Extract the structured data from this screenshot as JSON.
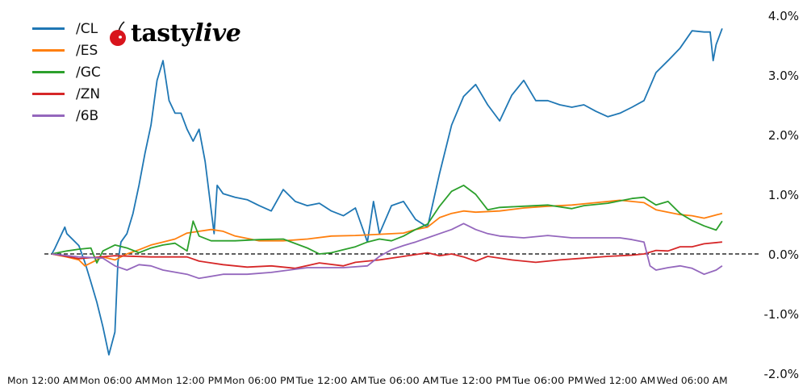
{
  "logo": {
    "text": "tastylive",
    "part1": "tasty",
    "part2": "live"
  },
  "chart_data": {
    "type": "line",
    "title": "",
    "xlabel": "",
    "ylabel": "",
    "ylim": [
      -2.0,
      4.0
    ],
    "y_ticks": [
      "4.0%",
      "3.0%",
      "2.0%",
      "1.0%",
      "0.0%",
      "-1.0%",
      "-2.0%"
    ],
    "y_tick_values": [
      4,
      3,
      2,
      1,
      0,
      -1,
      -2
    ],
    "y_axis_side": "right",
    "x_ticks": [
      "Mon 12:00 AM",
      "Mon 06:00 AM",
      "Mon 12:00 PM",
      "Mon 06:00 PM",
      "Tue 12:00 AM",
      "Tue 06:00 AM",
      "Tue 12:00 PM",
      "Tue 06:00 PM",
      "Wed 12:00 AM",
      "Wed 06:00 AM"
    ],
    "x_tick_values": [
      "Mon 00:00",
      "Mon 06:00",
      "Mon 12:00",
      "Mon 18:00",
      "Tue 00:00",
      "Tue 06:00",
      "Tue 12:00",
      "Tue 18:00",
      "Wed 00:00",
      "Wed 06:00"
    ],
    "grid": false,
    "zero_line": "dashed",
    "legend_placement": "top-left",
    "series": [
      {
        "name": "/CL",
        "color": "#1f77b4",
        "points": [
          [
            "Mon 00:45",
            0.0
          ],
          [
            "Mon 01:00",
            0.09
          ],
          [
            "Mon 01:50",
            0.45
          ],
          [
            "Mon 02:00",
            0.34
          ],
          [
            "Mon 03:00",
            0.14
          ],
          [
            "Mon 03:30",
            -0.14
          ],
          [
            "Mon 04:00",
            -0.47
          ],
          [
            "Mon 04:30",
            -0.81
          ],
          [
            "Mon 05:00",
            -1.22
          ],
          [
            "Mon 05:30",
            -1.69
          ],
          [
            "Mon 06:00",
            -1.31
          ],
          [
            "Mon 06:15",
            -0.14
          ],
          [
            "Mon 06:30",
            0.2
          ],
          [
            "Mon 07:00",
            0.34
          ],
          [
            "Mon 07:30",
            0.68
          ],
          [
            "Mon 08:00",
            1.15
          ],
          [
            "Mon 08:30",
            1.69
          ],
          [
            "Mon 09:00",
            2.16
          ],
          [
            "Mon 09:30",
            2.91
          ],
          [
            "Mon 10:00",
            3.24
          ],
          [
            "Mon 10:30",
            2.57
          ],
          [
            "Mon 11:00",
            2.36
          ],
          [
            "Mon 11:30",
            2.36
          ],
          [
            "Mon 12:00",
            2.09
          ],
          [
            "Mon 12:30",
            1.89
          ],
          [
            "Mon 13:00",
            2.09
          ],
          [
            "Mon 13:30",
            1.55
          ],
          [
            "Mon 14:15",
            0.34
          ],
          [
            "Mon 14:30",
            1.15
          ],
          [
            "Mon 15:00",
            1.01
          ],
          [
            "Mon 16:00",
            0.95
          ],
          [
            "Mon 17:00",
            0.91
          ],
          [
            "Mon 18:00",
            0.81
          ],
          [
            "Mon 19:00",
            0.72
          ],
          [
            "Mon 20:00",
            1.08
          ],
          [
            "Mon 21:00",
            0.88
          ],
          [
            "Mon 22:00",
            0.81
          ],
          [
            "Mon 23:00",
            0.85
          ],
          [
            "Tue 00:00",
            0.72
          ],
          [
            "Tue 01:00",
            0.64
          ],
          [
            "Tue 02:00",
            0.77
          ],
          [
            "Tue 03:00",
            0.2
          ],
          [
            "Tue 03:30",
            0.88
          ],
          [
            "Tue 04:00",
            0.34
          ],
          [
            "Tue 05:00",
            0.81
          ],
          [
            "Tue 06:00",
            0.88
          ],
          [
            "Tue 07:00",
            0.58
          ],
          [
            "Tue 08:00",
            0.45
          ],
          [
            "Tue 09:00",
            1.35
          ],
          [
            "Tue 10:00",
            2.16
          ],
          [
            "Tue 11:00",
            2.64
          ],
          [
            "Tue 12:00",
            2.84
          ],
          [
            "Tue 13:00",
            2.5
          ],
          [
            "Tue 14:00",
            2.23
          ],
          [
            "Tue 15:00",
            2.66
          ],
          [
            "Tue 16:00",
            2.91
          ],
          [
            "Tue 17:00",
            2.57
          ],
          [
            "Tue 18:00",
            2.57
          ],
          [
            "Tue 19:00",
            2.5
          ],
          [
            "Tue 20:00",
            2.46
          ],
          [
            "Tue 21:00",
            2.5
          ],
          [
            "Tue 22:00",
            2.39
          ],
          [
            "Tue 23:00",
            2.3
          ],
          [
            "Wed 00:00",
            2.36
          ],
          [
            "Wed 01:00",
            2.46
          ],
          [
            "Wed 02:00",
            2.57
          ],
          [
            "Wed 03:00",
            3.04
          ],
          [
            "Wed 04:00",
            3.24
          ],
          [
            "Wed 05:00",
            3.45
          ],
          [
            "Wed 06:00",
            3.74
          ],
          [
            "Wed 07:00",
            3.72
          ],
          [
            "Wed 07:30",
            3.72
          ],
          [
            "Wed 07:45",
            3.24
          ],
          [
            "Wed 08:00",
            3.51
          ],
          [
            "Wed 08:30",
            3.78
          ]
        ]
      },
      {
        "name": "/ES",
        "color": "#ff7f0e",
        "points": [
          [
            "Mon 00:45",
            0.0
          ],
          [
            "Mon 02:00",
            -0.05
          ],
          [
            "Mon 03:00",
            -0.1
          ],
          [
            "Mon 03:30",
            -0.2
          ],
          [
            "Mon 05:00",
            -0.05
          ],
          [
            "Mon 06:00",
            -0.1
          ],
          [
            "Mon 07:00",
            0.0
          ],
          [
            "Mon 08:00",
            0.07
          ],
          [
            "Mon 09:00",
            0.15
          ],
          [
            "Mon 10:00",
            0.2
          ],
          [
            "Mon 11:00",
            0.25
          ],
          [
            "Mon 12:00",
            0.35
          ],
          [
            "Mon 13:00",
            0.38
          ],
          [
            "Mon 14:00",
            0.41
          ],
          [
            "Mon 15:00",
            0.38
          ],
          [
            "Mon 16:00",
            0.3
          ],
          [
            "Mon 18:00",
            0.22
          ],
          [
            "Mon 20:00",
            0.22
          ],
          [
            "Mon 22:00",
            0.25
          ],
          [
            "Tue 00:00",
            0.3
          ],
          [
            "Tue 02:00",
            0.31
          ],
          [
            "Tue 04:00",
            0.33
          ],
          [
            "Tue 06:00",
            0.35
          ],
          [
            "Tue 07:00",
            0.41
          ],
          [
            "Tue 08:00",
            0.45
          ],
          [
            "Tue 09:00",
            0.61
          ],
          [
            "Tue 10:00",
            0.68
          ],
          [
            "Tue 11:00",
            0.72
          ],
          [
            "Tue 12:00",
            0.7
          ],
          [
            "Tue 14:00",
            0.72
          ],
          [
            "Tue 16:00",
            0.77
          ],
          [
            "Tue 18:00",
            0.8
          ],
          [
            "Tue 20:00",
            0.82
          ],
          [
            "Tue 22:00",
            0.86
          ],
          [
            "Wed 00:00",
            0.9
          ],
          [
            "Wed 01:00",
            0.88
          ],
          [
            "Wed 02:00",
            0.86
          ],
          [
            "Wed 03:00",
            0.74
          ],
          [
            "Wed 04:00",
            0.7
          ],
          [
            "Wed 05:00",
            0.66
          ],
          [
            "Wed 06:00",
            0.64
          ],
          [
            "Wed 07:00",
            0.6
          ],
          [
            "Wed 08:30",
            0.68
          ]
        ]
      },
      {
        "name": "/GC",
        "color": "#2ca02c",
        "points": [
          [
            "Mon 00:45",
            0.0
          ],
          [
            "Mon 02:00",
            0.05
          ],
          [
            "Mon 03:00",
            0.08
          ],
          [
            "Mon 04:00",
            0.1
          ],
          [
            "Mon 04:30",
            -0.15
          ],
          [
            "Mon 05:00",
            0.05
          ],
          [
            "Mon 06:00",
            0.15
          ],
          [
            "Mon 07:00",
            0.1
          ],
          [
            "Mon 08:00",
            0.02
          ],
          [
            "Mon 09:00",
            0.1
          ],
          [
            "Mon 10:00",
            0.15
          ],
          [
            "Mon 11:00",
            0.18
          ],
          [
            "Mon 12:00",
            0.05
          ],
          [
            "Mon 12:30",
            0.55
          ],
          [
            "Mon 13:00",
            0.3
          ],
          [
            "Mon 14:00",
            0.22
          ],
          [
            "Mon 16:00",
            0.22
          ],
          [
            "Mon 18:00",
            0.24
          ],
          [
            "Mon 20:00",
            0.25
          ],
          [
            "Mon 22:00",
            0.1
          ],
          [
            "Mon 23:00",
            0.0
          ],
          [
            "Tue 00:00",
            0.02
          ],
          [
            "Tue 01:00",
            0.07
          ],
          [
            "Tue 02:00",
            0.12
          ],
          [
            "Tue 03:00",
            0.2
          ],
          [
            "Tue 04:00",
            0.25
          ],
          [
            "Tue 05:00",
            0.22
          ],
          [
            "Tue 06:00",
            0.3
          ],
          [
            "Tue 07:00",
            0.41
          ],
          [
            "Tue 08:00",
            0.5
          ],
          [
            "Tue 09:00",
            0.8
          ],
          [
            "Tue 10:00",
            1.05
          ],
          [
            "Tue 11:00",
            1.15
          ],
          [
            "Tue 12:00",
            1.0
          ],
          [
            "Tue 13:00",
            0.74
          ],
          [
            "Tue 14:00",
            0.78
          ],
          [
            "Tue 16:00",
            0.8
          ],
          [
            "Tue 18:00",
            0.82
          ],
          [
            "Tue 20:00",
            0.76
          ],
          [
            "Tue 21:00",
            0.81
          ],
          [
            "Tue 23:00",
            0.85
          ],
          [
            "Wed 01:00",
            0.93
          ],
          [
            "Wed 02:00",
            0.95
          ],
          [
            "Wed 03:00",
            0.82
          ],
          [
            "Wed 04:00",
            0.88
          ],
          [
            "Wed 05:00",
            0.68
          ],
          [
            "Wed 06:00",
            0.56
          ],
          [
            "Wed 07:00",
            0.47
          ],
          [
            "Wed 08:00",
            0.4
          ],
          [
            "Wed 08:30",
            0.55
          ]
        ]
      },
      {
        "name": "/ZN",
        "color": "#d62728",
        "points": [
          [
            "Mon 00:45",
            0.0
          ],
          [
            "Mon 03:00",
            -0.08
          ],
          [
            "Mon 06:00",
            -0.03
          ],
          [
            "Mon 09:00",
            -0.05
          ],
          [
            "Mon 12:00",
            -0.05
          ],
          [
            "Mon 13:00",
            -0.12
          ],
          [
            "Mon 15:00",
            -0.18
          ],
          [
            "Mon 17:00",
            -0.22
          ],
          [
            "Mon 19:00",
            -0.2
          ],
          [
            "Mon 21:00",
            -0.24
          ],
          [
            "Mon 23:00",
            -0.15
          ],
          [
            "Tue 01:00",
            -0.2
          ],
          [
            "Tue 02:00",
            -0.14
          ],
          [
            "Tue 04:00",
            -0.1
          ],
          [
            "Tue 06:00",
            -0.04
          ],
          [
            "Tue 08:00",
            0.02
          ],
          [
            "Tue 09:00",
            -0.03
          ],
          [
            "Tue 10:00",
            0.0
          ],
          [
            "Tue 11:00",
            -0.05
          ],
          [
            "Tue 12:00",
            -0.12
          ],
          [
            "Tue 13:00",
            -0.04
          ],
          [
            "Tue 15:00",
            -0.1
          ],
          [
            "Tue 17:00",
            -0.14
          ],
          [
            "Tue 19:00",
            -0.1
          ],
          [
            "Tue 21:00",
            -0.07
          ],
          [
            "Tue 23:00",
            -0.04
          ],
          [
            "Wed 01:00",
            -0.02
          ],
          [
            "Wed 02:00",
            0.0
          ],
          [
            "Wed 03:00",
            0.06
          ],
          [
            "Wed 04:00",
            0.05
          ],
          [
            "Wed 05:00",
            0.12
          ],
          [
            "Wed 06:00",
            0.12
          ],
          [
            "Wed 07:00",
            0.17
          ],
          [
            "Wed 08:30",
            0.2
          ]
        ]
      },
      {
        "name": "/6B",
        "color": "#9467bd",
        "points": [
          [
            "Mon 00:45",
            0.0
          ],
          [
            "Mon 03:00",
            -0.05
          ],
          [
            "Mon 05:00",
            -0.07
          ],
          [
            "Mon 06:00",
            -0.2
          ],
          [
            "Mon 07:00",
            -0.27
          ],
          [
            "Mon 08:00",
            -0.18
          ],
          [
            "Mon 09:00",
            -0.2
          ],
          [
            "Mon 10:00",
            -0.27
          ],
          [
            "Mon 12:00",
            -0.34
          ],
          [
            "Mon 13:00",
            -0.41
          ],
          [
            "Mon 15:00",
            -0.34
          ],
          [
            "Mon 17:00",
            -0.34
          ],
          [
            "Mon 19:00",
            -0.31
          ],
          [
            "Mon 22:00",
            -0.23
          ],
          [
            "Tue 01:00",
            -0.23
          ],
          [
            "Tue 03:00",
            -0.2
          ],
          [
            "Tue 04:00",
            -0.04
          ],
          [
            "Tue 05:00",
            0.07
          ],
          [
            "Tue 06:00",
            0.14
          ],
          [
            "Tue 07:00",
            0.2
          ],
          [
            "Tue 08:00",
            0.27
          ],
          [
            "Tue 09:00",
            0.34
          ],
          [
            "Tue 10:00",
            0.41
          ],
          [
            "Tue 11:00",
            0.51
          ],
          [
            "Tue 12:00",
            0.41
          ],
          [
            "Tue 13:00",
            0.34
          ],
          [
            "Tue 14:00",
            0.3
          ],
          [
            "Tue 16:00",
            0.27
          ],
          [
            "Tue 18:00",
            0.31
          ],
          [
            "Tue 20:00",
            0.27
          ],
          [
            "Tue 22:00",
            0.27
          ],
          [
            "Wed 00:00",
            0.27
          ],
          [
            "Wed 01:00",
            0.24
          ],
          [
            "Wed 02:00",
            0.2
          ],
          [
            "Wed 02:30",
            -0.2
          ],
          [
            "Wed 03:00",
            -0.27
          ],
          [
            "Wed 04:00",
            -0.23
          ],
          [
            "Wed 05:00",
            -0.2
          ],
          [
            "Wed 06:00",
            -0.24
          ],
          [
            "Wed 07:00",
            -0.34
          ],
          [
            "Wed 08:00",
            -0.27
          ],
          [
            "Wed 08:30",
            -0.2
          ]
        ]
      }
    ]
  }
}
